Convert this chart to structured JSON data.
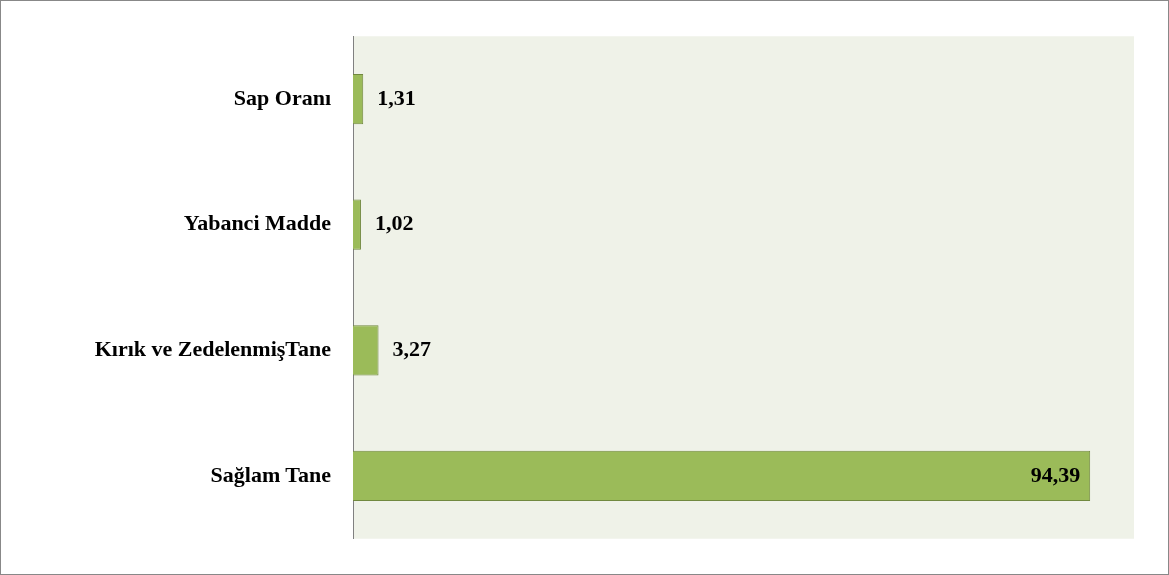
{
  "chart_data": {
    "type": "bar",
    "orientation": "horizontal",
    "categories": [
      "Sap Oranı",
      "Yabanci Madde",
      "Kırık ve ZedelenmişTane",
      "Sağlam Tane"
    ],
    "values": [
      1.31,
      1.02,
      3.27,
      94.39
    ],
    "color": "#9bbb59",
    "value_labels": [
      "1,31",
      "1,02",
      "3,27",
      "94,39"
    ],
    "legend": false
  }
}
